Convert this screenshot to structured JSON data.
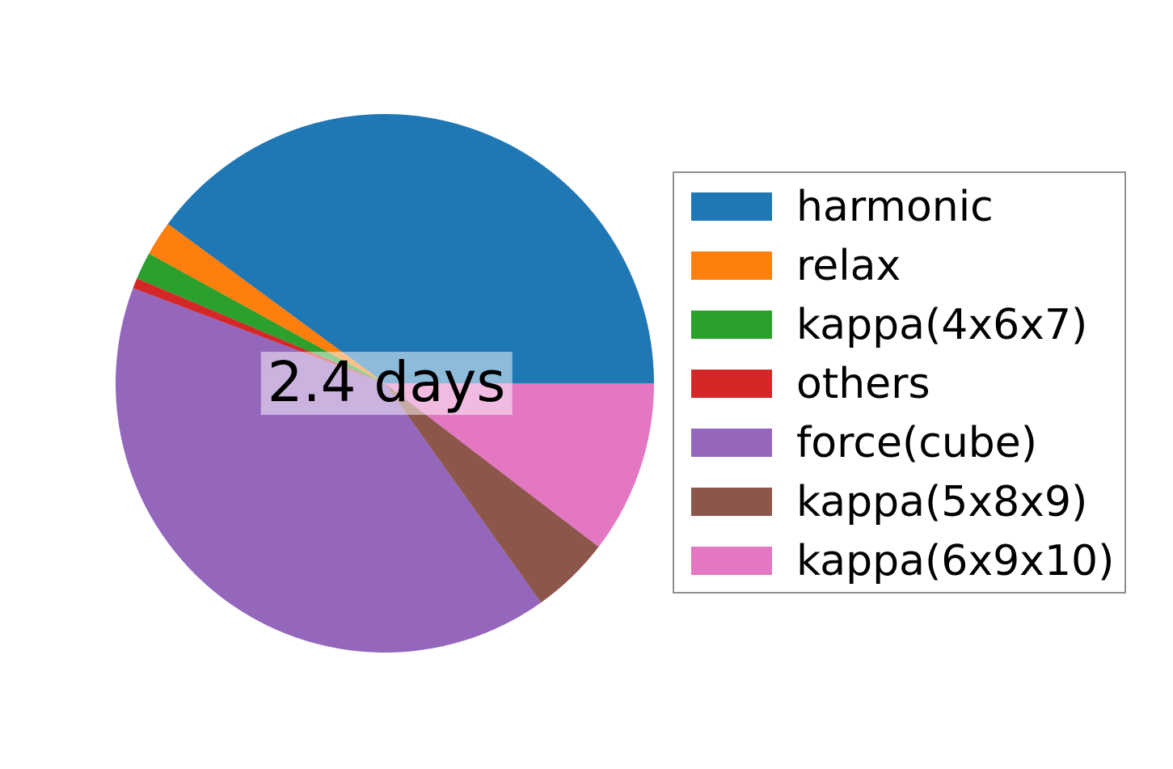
{
  "figure": {
    "background_color": "#ffffff",
    "legend_border_color": "#8f8f8f",
    "center_label_background": "rgba(255,255,255,0.5)"
  },
  "chart_data": {
    "type": "pie",
    "title": "",
    "center_label": "2.4 days",
    "start_angle_deg": 0,
    "direction": "counterclockwise",
    "legend_position": "right",
    "gridlines": false,
    "slices": [
      {
        "label": "harmonic",
        "color": "#1f77b4",
        "start_deg": 0,
        "end_deg": 143.7,
        "angle_deg": 143.7,
        "percent": 39.9
      },
      {
        "label": "relax",
        "color": "#ff7f0e",
        "start_deg": 143.7,
        "end_deg": 151.2,
        "angle_deg": 7.5,
        "percent": 2.1
      },
      {
        "label": "kappa(4x6x7)",
        "color": "#2ca02c",
        "start_deg": 151.2,
        "end_deg": 157.1,
        "angle_deg": 5.9,
        "percent": 1.6
      },
      {
        "label": "others",
        "color": "#d62728",
        "start_deg": 157.1,
        "end_deg": 159.3,
        "angle_deg": 2.2,
        "percent": 0.6
      },
      {
        "label": "force(cube)",
        "color": "#9467bd",
        "start_deg": 159.3,
        "end_deg": 305.5,
        "angle_deg": 146.2,
        "percent": 40.6
      },
      {
        "label": "kappa(5x8x9)",
        "color": "#8c564b",
        "start_deg": 305.5,
        "end_deg": 322.6,
        "angle_deg": 17.1,
        "percent": 4.8
      },
      {
        "label": "kappa(6x9x10)",
        "color": "#e377c2",
        "start_deg": 322.6,
        "end_deg": 360,
        "angle_deg": 37.4,
        "percent": 10.4
      }
    ]
  }
}
